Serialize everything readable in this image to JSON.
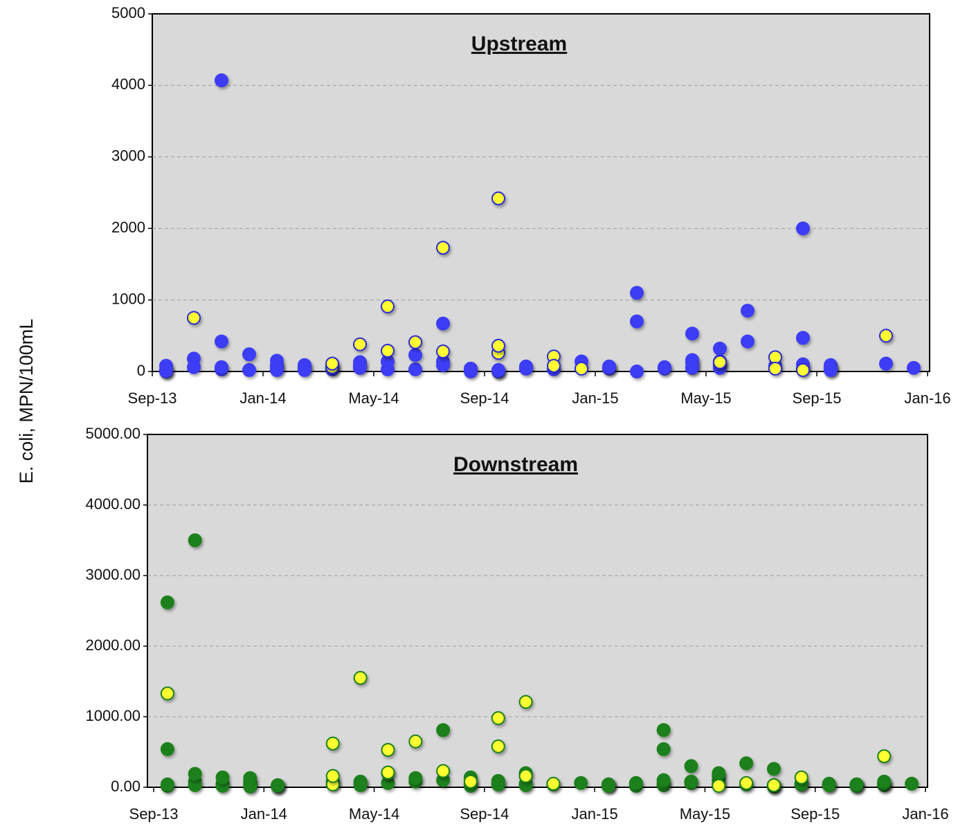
{
  "chart_data": [
    {
      "type": "scatter",
      "title": "Upstream",
      "title_color": "#2b2bd6",
      "ylabel": "E. coli, MPN/100mL",
      "xlim": [
        "2013-09",
        "2016-01"
      ],
      "xticks": [
        {
          "value": "2013-09",
          "label": "Sep-13"
        },
        {
          "value": "2014-01",
          "label": "Jan-14"
        },
        {
          "value": "2014-05",
          "label": "May-14"
        },
        {
          "value": "2014-09",
          "label": "Sep-14"
        },
        {
          "value": "2015-01",
          "label": "Jan-15"
        },
        {
          "value": "2015-05",
          "label": "May-15"
        },
        {
          "value": "2015-09",
          "label": "Sep-15"
        },
        {
          "value": "2016-01",
          "label": "Jan-16"
        }
      ],
      "ylim": [
        0,
        5000
      ],
      "yticks": [
        0,
        1000,
        2000,
        3000,
        4000,
        5000
      ],
      "grid": true,
      "series": [
        {
          "color": "#3c3cf5",
          "edgecolor": "#3c3cf5",
          "x": [
            "2013-09",
            "2013-09",
            "2013-09",
            "2013-09",
            "2013-10",
            "2013-10",
            "2013-11",
            "2013-11",
            "2013-11",
            "2013-11",
            "2013-12",
            "2013-12",
            "2014-01",
            "2014-01",
            "2014-01",
            "2014-01",
            "2014-02",
            "2014-02",
            "2014-02",
            "2014-03",
            "2014-04",
            "2014-04",
            "2014-04",
            "2014-05",
            "2014-05",
            "2014-06",
            "2014-06",
            "2014-07",
            "2014-07",
            "2014-07",
            "2014-08",
            "2014-08",
            "2014-09",
            "2014-09",
            "2014-09",
            "2014-10",
            "2014-10",
            "2014-11",
            "2014-12",
            "2015-01",
            "2015-01",
            "2015-01",
            "2015-02",
            "2015-02",
            "2015-02",
            "2015-03",
            "2015-03",
            "2015-04",
            "2015-04",
            "2015-04",
            "2015-04",
            "2015-04",
            "2015-05",
            "2015-05",
            "2015-05",
            "2015-06",
            "2015-06",
            "2015-07",
            "2015-08",
            "2015-08",
            "2015-08",
            "2015-08",
            "2015-09",
            "2015-09",
            "2015-09",
            "2015-09",
            "2015-11",
            "2015-12"
          ],
          "values": [
            0,
            80,
            20,
            10,
            180,
            60,
            4070,
            30,
            420,
            60,
            20,
            240,
            80,
            150,
            50,
            20,
            60,
            90,
            20,
            30,
            130,
            80,
            50,
            140,
            30,
            30,
            230,
            670,
            140,
            90,
            40,
            0,
            0,
            10,
            20,
            70,
            40,
            30,
            140,
            40,
            70,
            60,
            700,
            0,
            1100,
            40,
            60,
            50,
            530,
            130,
            160,
            60,
            320,
            90,
            50,
            850,
            420,
            80,
            100,
            40,
            470,
            2000,
            90,
            50,
            30,
            20,
            110,
            50
          ]
        },
        {
          "color": "#ffff33",
          "edgecolor": "#2b2bd6",
          "x": [
            "2013-10",
            "2014-03",
            "2014-03",
            "2014-03",
            "2014-04",
            "2014-05",
            "2014-05",
            "2014-06",
            "2014-07",
            "2014-07",
            "2014-09",
            "2014-09",
            "2014-09",
            "2014-11",
            "2014-11",
            "2014-12",
            "2015-05",
            "2015-05",
            "2015-07",
            "2015-07",
            "2015-08",
            "2015-11"
          ],
          "values": [
            750,
            60,
            60,
            110,
            380,
            910,
            290,
            410,
            1730,
            280,
            260,
            2420,
            360,
            210,
            80,
            40,
            140,
            130,
            200,
            40,
            20,
            500
          ]
        }
      ]
    },
    {
      "type": "scatter",
      "title": "Downstream",
      "title_color": "#1e8a1e",
      "xlim": [
        "2013-09",
        "2016-01"
      ],
      "xticks": [
        {
          "value": "2013-09",
          "label": "Sep-13"
        },
        {
          "value": "2014-01",
          "label": "Jan-14"
        },
        {
          "value": "2014-05",
          "label": "May-14"
        },
        {
          "value": "2014-09",
          "label": "Sep-14"
        },
        {
          "value": "2015-01",
          "label": "Jan-15"
        },
        {
          "value": "2015-05",
          "label": "May-15"
        },
        {
          "value": "2015-09",
          "label": "Sep-15"
        },
        {
          "value": "2016-01",
          "label": "Jan-16"
        }
      ],
      "ylim": [
        0,
        5000
      ],
      "yticks": [
        {
          "value": 0,
          "label": "0.00"
        },
        {
          "value": 1000,
          "label": "1000.00"
        },
        {
          "value": 2000,
          "label": "2000.00"
        },
        {
          "value": 3000,
          "label": "3000.00"
        },
        {
          "value": 4000,
          "label": "4000.00"
        },
        {
          "value": 5000,
          "label": "5000.00"
        }
      ],
      "grid": true,
      "series": [
        {
          "color": "#1a801a",
          "edgecolor": "#1a801a",
          "x": [
            "2013-09",
            "2013-09",
            "2013-09",
            "2013-09",
            "2013-10",
            "2013-10",
            "2013-10",
            "2013-10",
            "2013-11",
            "2013-11",
            "2013-11",
            "2013-12",
            "2013-12",
            "2013-12",
            "2013-12",
            "2014-01",
            "2014-01",
            "2014-01",
            "2014-01",
            "2014-03",
            "2014-04",
            "2014-04",
            "2014-04",
            "2014-05",
            "2014-05",
            "2014-06",
            "2014-06",
            "2014-07",
            "2014-07",
            "2014-08",
            "2014-08",
            "2014-08",
            "2014-09",
            "2014-09",
            "2014-09",
            "2014-10",
            "2014-10",
            "2014-10",
            "2014-12",
            "2015-01",
            "2015-01",
            "2015-01",
            "2015-01",
            "2015-02",
            "2015-02",
            "2015-03",
            "2015-03",
            "2015-03",
            "2015-03",
            "2015-03",
            "2015-04",
            "2015-04",
            "2015-04",
            "2015-05",
            "2015-05",
            "2015-05",
            "2015-05",
            "2015-06",
            "2015-06",
            "2015-07",
            "2015-07",
            "2015-07",
            "2015-08",
            "2015-08",
            "2015-08",
            "2015-09",
            "2015-09",
            "2015-09",
            "2015-10",
            "2015-10",
            "2015-10",
            "2015-10",
            "2015-11",
            "2015-11",
            "2015-11",
            "2015-11",
            "2015-12"
          ],
          "values": [
            540,
            20,
            2620,
            40,
            80,
            3500,
            30,
            190,
            50,
            20,
            140,
            30,
            80,
            130,
            10,
            20,
            20,
            20,
            30,
            60,
            80,
            60,
            30,
            60,
            200,
            80,
            130,
            810,
            100,
            140,
            60,
            20,
            50,
            90,
            40,
            200,
            50,
            30,
            60,
            40,
            30,
            40,
            20,
            20,
            60,
            30,
            60,
            810,
            540,
            100,
            60,
            300,
            80,
            40,
            100,
            170,
            200,
            340,
            40,
            10,
            260,
            30,
            50,
            40,
            50,
            50,
            30,
            30,
            30,
            40,
            20,
            40,
            30,
            50,
            60,
            80,
            50
          ]
        },
        {
          "color": "#ffff33",
          "edgecolor": "#1a801a",
          "x": [
            "2013-09",
            "2014-03",
            "2014-03",
            "2014-03",
            "2014-03",
            "2014-04",
            "2014-05",
            "2014-05",
            "2014-06",
            "2014-07",
            "2014-08",
            "2014-09",
            "2014-09",
            "2014-10",
            "2014-10",
            "2014-11",
            "2014-11",
            "2015-05",
            "2015-06",
            "2015-07",
            "2015-07",
            "2015-08",
            "2015-11"
          ],
          "values": [
            1330,
            80,
            40,
            160,
            620,
            1550,
            210,
            530,
            650,
            230,
            80,
            980,
            580,
            1210,
            160,
            40,
            50,
            20,
            60,
            30,
            30,
            140,
            440
          ]
        }
      ]
    }
  ]
}
